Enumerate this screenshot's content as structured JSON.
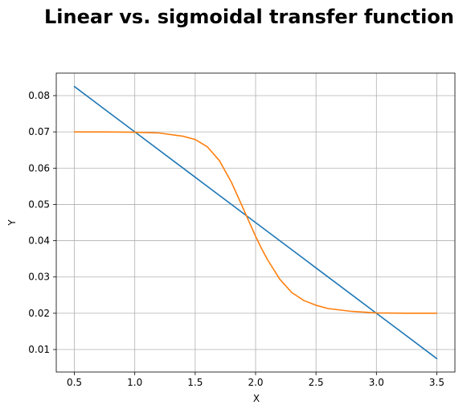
{
  "chart_data": {
    "type": "line",
    "title": "Linear vs. sigmoidal transfer function",
    "xlabel": "X",
    "ylabel": "Y",
    "xlim": [
      0.35,
      3.65
    ],
    "ylim": [
      0.0038,
      0.0862
    ],
    "x_ticks": [
      0.5,
      1.0,
      1.5,
      2.0,
      2.5,
      3.0,
      3.5
    ],
    "x_tick_labels": [
      "0.5",
      "1.0",
      "1.5",
      "2.0",
      "2.5",
      "3.0",
      "3.5"
    ],
    "y_ticks": [
      0.01,
      0.02,
      0.03,
      0.04,
      0.05,
      0.06,
      0.07,
      0.08
    ],
    "y_tick_labels": [
      "0.01",
      "0.02",
      "0.03",
      "0.04",
      "0.05",
      "0.06",
      "0.07",
      "0.08"
    ],
    "grid": true,
    "series": [
      {
        "color": "#1f77b4",
        "x": [
          0.5,
          1.0,
          1.5,
          2.0,
          2.5,
          3.0,
          3.5
        ],
        "y": [
          0.0825,
          0.07,
          0.0575,
          0.045,
          0.0325,
          0.02,
          0.0075
        ]
      },
      {
        "color": "#ff7f0e",
        "x": [
          0.5,
          0.75,
          1.0,
          1.2,
          1.4,
          1.5,
          1.6,
          1.7,
          1.8,
          1.9,
          2.0,
          2.05,
          2.1,
          2.2,
          2.3,
          2.4,
          2.5,
          2.6,
          2.8,
          3.0,
          3.25,
          3.5
        ],
        "y": [
          0.07,
          0.07,
          0.0699,
          0.0697,
          0.0688,
          0.0679,
          0.0659,
          0.0621,
          0.0561,
          0.0487,
          0.0412,
          0.0378,
          0.0347,
          0.0294,
          0.0257,
          0.0235,
          0.0222,
          0.0213,
          0.0205,
          0.0201,
          0.02,
          0.02
        ]
      }
    ]
  }
}
